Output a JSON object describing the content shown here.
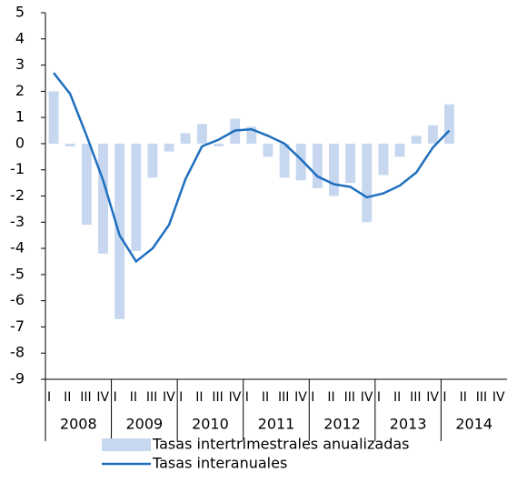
{
  "chart_data": {
    "type": "bar_line",
    "categories": [
      "I",
      "II",
      "III",
      "IV",
      "I",
      "II",
      "III",
      "IV",
      "I",
      "II",
      "III",
      "IV",
      "I",
      "II",
      "III",
      "IV",
      "I",
      "II",
      "III",
      "IV",
      "I",
      "II",
      "III",
      "IV",
      "I",
      "II",
      "III",
      "IV"
    ],
    "years": [
      "2008",
      "2009",
      "2010",
      "2011",
      "2012",
      "2013",
      "2014"
    ],
    "series": [
      {
        "name": "Tasas intertrimestrales anualizadas",
        "type": "bar",
        "color": "#c6d7ef",
        "values": [
          2.0,
          -0.1,
          -3.1,
          -4.2,
          -6.7,
          -4.1,
          -1.3,
          -0.3,
          0.4,
          0.75,
          -0.1,
          0.95,
          0.65,
          -0.5,
          -1.3,
          -1.4,
          -1.7,
          -2.0,
          -1.5,
          -3.0,
          -1.2,
          -0.5,
          0.3,
          0.7,
          1.5,
          null,
          null,
          null
        ]
      },
      {
        "name": "Tasas interanuales",
        "type": "line",
        "color": "#1f6fbf",
        "values": [
          2.7,
          1.9,
          0.3,
          -1.4,
          -3.5,
          -4.5,
          -4.0,
          -3.1,
          -1.35,
          -0.1,
          0.15,
          0.5,
          0.55,
          0.3,
          0.0,
          -0.6,
          -1.25,
          -1.55,
          -1.65,
          -2.05,
          -1.9,
          -1.6,
          -1.1,
          -0.15,
          0.5,
          null,
          null,
          null
        ]
      }
    ],
    "ylim": [
      -9,
      5
    ],
    "yticks": [
      5,
      4,
      3,
      2,
      1,
      0,
      -1,
      -2,
      -3,
      -4,
      -5,
      -6,
      -7,
      -8,
      -9
    ]
  }
}
